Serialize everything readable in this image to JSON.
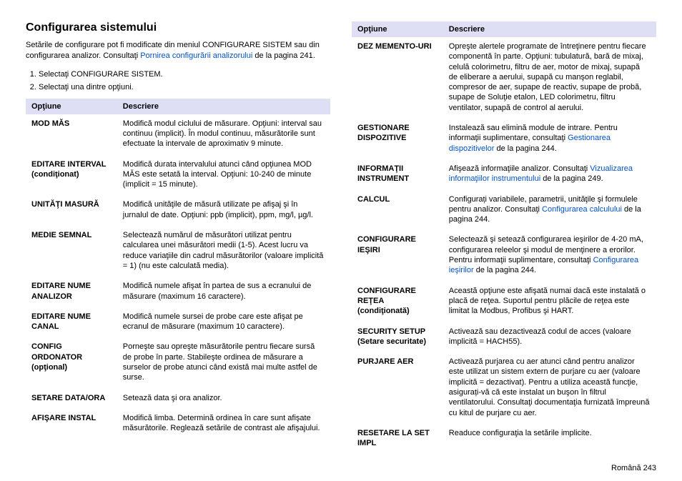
{
  "heading": "Configurarea sistemului",
  "intro": {
    "prefix": "Setările de configurare pot fi modificate din meniul CONFIGURARE SISTEM sau din configurarea analizor. Consultaţi ",
    "link_text": "Pornirea configurării analizorului",
    "suffix": " de la pagina 241."
  },
  "steps": [
    "Selectaţi CONFIGURARE SISTEM.",
    "Selectaţi una dintre opţiuni."
  ],
  "table_headers": {
    "option": "Opţiune",
    "description": "Descriere"
  },
  "left_rows": [
    {
      "name": "MOD MĂS",
      "desc": "Modifică modul ciclului de măsurare. Opţiuni: interval sau continuu (implicit). În modul continuu, măsurătorile sunt efectuate la intervale de aproximativ 9 minute."
    },
    {
      "name": "EDITARE INTERVAL (condiţionat)",
      "desc": "Modifică durata intervalului atunci când opţiunea MOD MĂS este setată la interval. Opţiuni: 10-240 de minute (implicit = 15 minute)."
    },
    {
      "name": "UNITĂŢI MASURĂ",
      "desc": "Modifică unităţile de măsură utilizate pe afişaj şi în jurnalul de date. Opţiuni: ppb (implicit), ppm, mg/l, µg/l."
    },
    {
      "name": "MEDIE SEMNAL",
      "desc": "Selectează numărul de măsurători utilizat pentru calcularea unei măsurători medii (1-5). Acest lucru va reduce variaţiile din cadrul măsurătorilor (valoare implicită = 1) (nu este calculată media)."
    },
    {
      "name": "EDITARE NUME ANALIZOR",
      "desc": "Modifică numele afişat în partea de sus a ecranului de măsurare (maximum 16 caractere)."
    },
    {
      "name": "EDITARE NUME CANAL",
      "desc": "Modifică numele sursei de probe care este afişat pe ecranul de măsurare (maximum 10 caractere)."
    },
    {
      "name": "CONFIG ORDONATOR (opţional)",
      "desc": "Porneşte sau opreşte măsurătorile pentru fiecare sursă de probe în parte. Stabileşte ordinea de măsurare a surselor de probe atunci când există mai multe astfel de surse."
    },
    {
      "name": "SETARE DATA/ORA",
      "desc": "Setează data şi ora analizor."
    },
    {
      "name": "AFIŞARE INSTAL",
      "desc": "Modifică limba. Determină ordinea în care sunt afişate măsurătorile. Reglează setările de contrast ale afişajului."
    }
  ],
  "right_rows": [
    {
      "name": "DEZ MEMENTO-URI",
      "desc": "Opreşte alertele programate de întreţinere pentru fiecare componentă în parte. Opţiuni: tubulatură, bară de mixaj, celulă colorimetru, filtru de aer, motor de mixaj, supapă de eliberare a aerului, supapă cu manşon reglabil, compresor de aer, supape de reactiv, supape de probă, supape de Soluţie etalon, LED colorimetru, filtru ventilator, supapă de control al aerului.",
      "link": null
    },
    {
      "name": "GESTIONARE DISPOZITIVE",
      "desc_prefix": "Instalează sau elimină module de intrare. Pentru informaţii suplimentare, consultaţi ",
      "link": "Gestionarea dispozitivelor",
      "desc_suffix": " de la pagina 244."
    },
    {
      "name": "INFORMAŢII INSTRUMENT",
      "desc_prefix": "Afişează informaţiile analizor. Consultaţi ",
      "link": "Vizualizarea informaţiilor instrumentului",
      "desc_suffix": " de la pagina 249."
    },
    {
      "name": "CALCUL",
      "desc_prefix": "Configurați variabilele, parametrii, unităţile şi formulele pentru analizor. Consultaţi ",
      "link": "Configurarea calculului",
      "desc_suffix": " de la pagina 244."
    },
    {
      "name": "CONFIGURARE IEŞIRI",
      "desc_prefix": "Selectează şi setează configurarea ieşirilor de 4-20 mA, configurarea releelor şi modul de menţinere a erorilor. Pentru informaţii suplimentare, consultaţi ",
      "link": "Configurarea ieşirilor",
      "desc_suffix": " de la pagina 244."
    },
    {
      "name": "CONFIGURARE REŢEA (condiţionată)",
      "desc": "Această opţiune este afişată numai dacă este instalată o placă de reţea. Suportul pentru plăcile de reţea este limitat la Modbus, Profibus şi HART.",
      "link": null
    },
    {
      "name": "SECURITY SETUP (Setare securitate)",
      "desc": "Activează sau dezactivează codul de acces (valoare implicită = HACH55).",
      "link": null
    },
    {
      "name": "PURJARE AER",
      "desc": "Activează purjarea cu aer atunci când pentru analizor este utilizat un sistem extern de purjare cu aer (valoare implicită = dezactivat). Pentru a utiliza această funcţie, asigurați-vă că este instalat un buşon în filtrul ventilatorului. Consultaţi documentaţia furnizată împreună cu kitul de purjare cu aer.",
      "link": null
    },
    {
      "name": "RESETARE LA SET IMPL",
      "desc": "Readuce configuraţia la setările implicite.",
      "link": null
    }
  ],
  "footer": {
    "lang": "Română",
    "page": "243"
  }
}
